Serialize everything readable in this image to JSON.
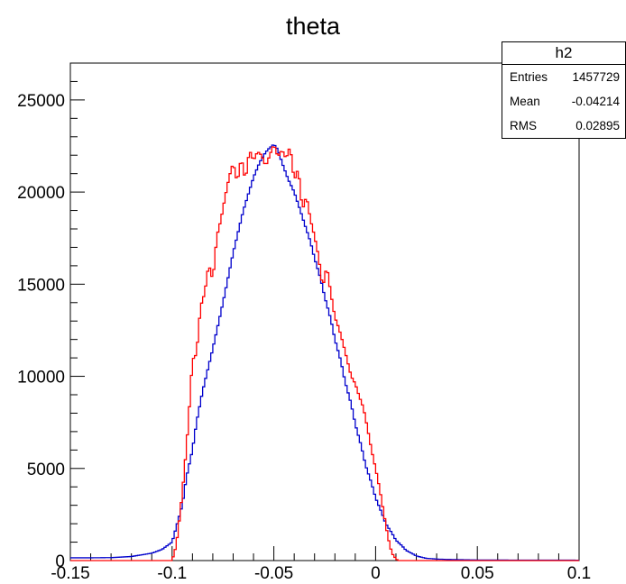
{
  "chart_data": {
    "type": "histogram",
    "title": "theta",
    "xlabel": "",
    "ylabel": "",
    "xlim": [
      -0.15,
      0.1
    ],
    "ylim": [
      0,
      27000
    ],
    "x_ticks": [
      -0.15,
      -0.1,
      -0.05,
      0,
      0.05,
      0.1
    ],
    "x_tick_labels": [
      "-0.15",
      "-0.1",
      "-0.05",
      "0",
      "0.05",
      "0.1"
    ],
    "y_ticks": [
      0,
      5000,
      10000,
      15000,
      20000,
      25000
    ],
    "y_tick_labels": [
      "0",
      "5000",
      "10000",
      "15000",
      "20000",
      "25000"
    ],
    "bin_width": 0.001,
    "series": [
      {
        "color": "#0000cc",
        "x": [
          -0.15,
          -0.14,
          -0.13,
          -0.12,
          -0.11,
          -0.105,
          -0.1,
          -0.098,
          -0.095,
          -0.093,
          -0.09,
          -0.088,
          -0.085,
          -0.08,
          -0.075,
          -0.07,
          -0.065,
          -0.06,
          -0.057,
          -0.055,
          -0.053,
          -0.05,
          -0.048,
          -0.046,
          -0.043,
          -0.04,
          -0.037,
          -0.035,
          -0.032,
          -0.03,
          -0.027,
          -0.025,
          -0.022,
          -0.02,
          -0.017,
          -0.015,
          -0.012,
          -0.01,
          -0.007,
          -0.005,
          -0.002,
          0,
          0.003,
          0.005,
          0.008,
          0.01,
          0.013,
          0.015,
          0.018,
          0.02,
          0.023,
          0.025,
          0.028,
          0.03,
          0.033,
          0.035,
          0.04,
          0.045,
          0.05,
          0.07,
          0.1
        ],
        "y": [
          150,
          150,
          160,
          220,
          400,
          600,
          1000,
          1800,
          3000,
          4500,
          6000,
          7500,
          9200,
          11500,
          14000,
          16700,
          19000,
          20800,
          21600,
          22000,
          22300,
          22600,
          22300,
          21600,
          20700,
          20000,
          19000,
          18300,
          17300,
          16400,
          15300,
          14300,
          13100,
          12000,
          10800,
          9700,
          8500,
          7400,
          6200,
          5200,
          4200,
          3400,
          2600,
          2000,
          1500,
          1100,
          800,
          550,
          380,
          250,
          170,
          120,
          100,
          80,
          70,
          60,
          50,
          40,
          30,
          25,
          20
        ]
      },
      {
        "color": "#ff0000",
        "x": [
          -0.15,
          -0.1,
          -0.098,
          -0.096,
          -0.094,
          -0.092,
          -0.09,
          -0.088,
          -0.086,
          -0.084,
          -0.082,
          -0.08,
          -0.078,
          -0.076,
          -0.074,
          -0.072,
          -0.07,
          -0.068,
          -0.066,
          -0.064,
          -0.062,
          -0.06,
          -0.058,
          -0.056,
          -0.054,
          -0.052,
          -0.05,
          -0.048,
          -0.046,
          -0.044,
          -0.042,
          -0.04,
          -0.038,
          -0.036,
          -0.034,
          -0.032,
          -0.03,
          -0.028,
          -0.026,
          -0.024,
          -0.022,
          -0.02,
          -0.018,
          -0.016,
          -0.014,
          -0.012,
          -0.01,
          -0.008,
          -0.006,
          -0.004,
          -0.002,
          0,
          0.002,
          0.004,
          0.006,
          0.008,
          0.01,
          0.011,
          0.013,
          0.1
        ],
        "y": [
          0,
          0,
          800,
          2600,
          4800,
          7500,
          10900,
          11200,
          13800,
          14500,
          16100,
          15200,
          17600,
          18500,
          19700,
          20800,
          21600,
          20500,
          21900,
          20600,
          22300,
          21700,
          22200,
          22000,
          21400,
          22000,
          22600,
          21900,
          22300,
          21800,
          22500,
          20600,
          21300,
          19000,
          19800,
          18500,
          17600,
          16500,
          14800,
          16000,
          14500,
          13200,
          12600,
          11800,
          10900,
          10000,
          9600,
          8900,
          8300,
          7200,
          6000,
          5000,
          3900,
          2600,
          1300,
          400,
          100,
          0,
          0,
          0
        ]
      }
    ],
    "stats_box": {
      "name": "h2",
      "rows": [
        {
          "label": "Entries",
          "value": "1457729"
        },
        {
          "label": "Mean",
          "value": "-0.04214"
        },
        {
          "label": "RMS",
          "value": "0.02895"
        }
      ]
    }
  }
}
